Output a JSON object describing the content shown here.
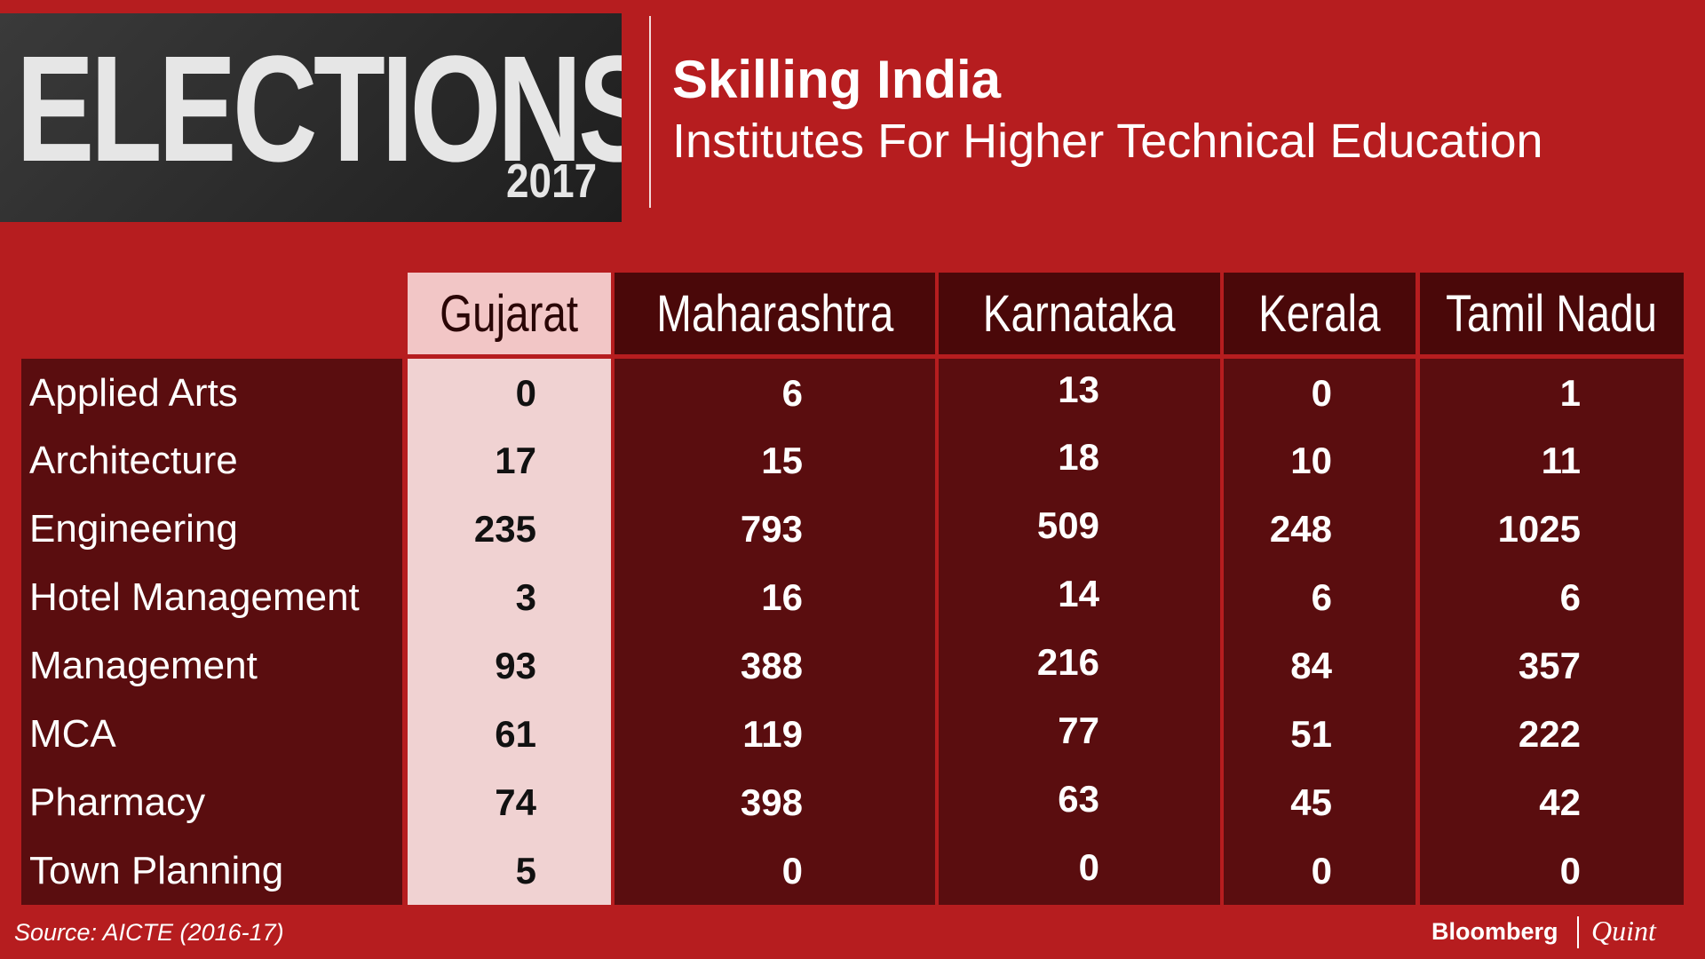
{
  "logo": {
    "word": "ELECTIONS",
    "year": "2017"
  },
  "header": {
    "title": "Skilling India",
    "subtitle": "Institutes For Higher Technical Education"
  },
  "table": {
    "columns": [
      "Gujarat",
      "Maharashtra",
      "Karnataka",
      "Kerala",
      "Tamil Nadu"
    ],
    "rows": [
      {
        "label": "Applied Arts",
        "values": [
          0,
          6,
          13,
          0,
          1
        ]
      },
      {
        "label": "Architecture",
        "values": [
          17,
          15,
          18,
          10,
          11
        ]
      },
      {
        "label": "Engineering",
        "values": [
          235,
          793,
          509,
          248,
          1025
        ]
      },
      {
        "label": "Hotel Management",
        "values": [
          3,
          16,
          14,
          6,
          6
        ]
      },
      {
        "label": "Management",
        "values": [
          93,
          388,
          216,
          84,
          357
        ]
      },
      {
        "label": "MCA",
        "values": [
          61,
          119,
          77,
          51,
          222
        ]
      },
      {
        "label": "Pharmacy",
        "values": [
          74,
          398,
          63,
          45,
          42
        ]
      },
      {
        "label": "Town Planning",
        "values": [
          5,
          0,
          0,
          0,
          0
        ]
      }
    ]
  },
  "footer": {
    "source": "Source: AICTE (2016-17)",
    "brand": "Bloomberg",
    "brand2": "Quint"
  }
}
